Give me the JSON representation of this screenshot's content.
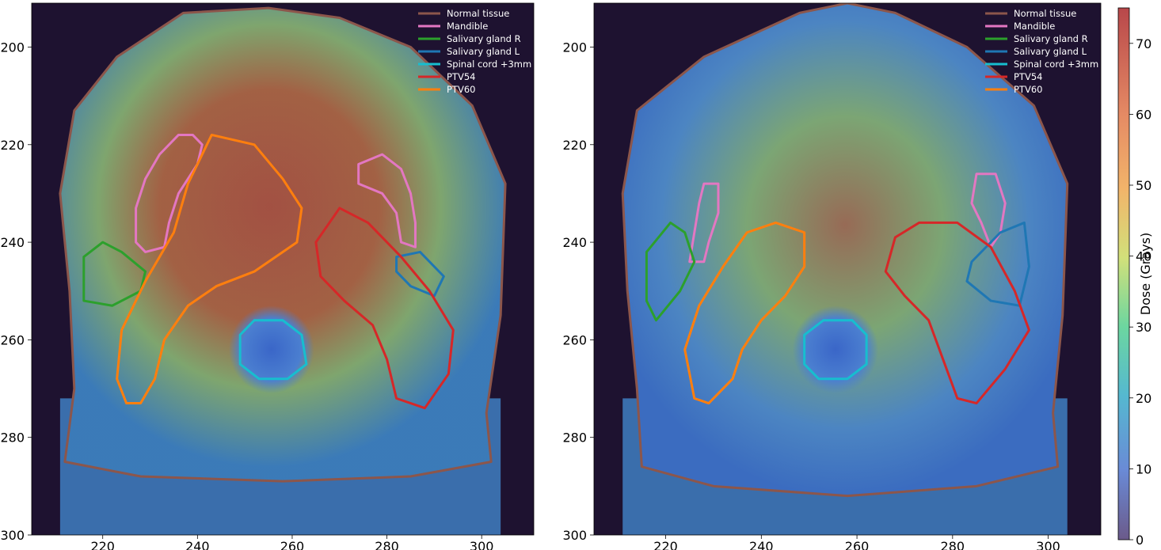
{
  "figure": {
    "colorbar": {
      "label": "Dose (Grays)",
      "ticks": [
        0,
        10,
        20,
        30,
        40,
        50,
        60,
        70
      ],
      "range": [
        0,
        75
      ]
    }
  },
  "chart_data": [
    {
      "type": "heatmap",
      "title": "",
      "xlabel": "",
      "ylabel": "",
      "xlim": [
        205,
        311
      ],
      "ylim": [
        300,
        191
      ],
      "xticks": [
        220,
        240,
        260,
        280,
        300
      ],
      "yticks": [
        200,
        220,
        240,
        260,
        280,
        300
      ],
      "legend": {
        "position": "top-right",
        "entries": [
          {
            "name": "Normal tissue",
            "color": "#8c564b"
          },
          {
            "name": "Mandible",
            "color": "#e377c2"
          },
          {
            "name": "Salivary gland R",
            "color": "#2ca02c"
          },
          {
            "name": "Salivary gland L",
            "color": "#1f77b4"
          },
          {
            "name": "Spinal cord +3mm",
            "color": "#17becf"
          },
          {
            "name": "PTV54",
            "color": "#d62728"
          },
          {
            "name": "PTV60",
            "color": "#ff7f0e"
          }
        ]
      },
      "contours": {
        "Normal tissue": [
          [
            237,
            193
          ],
          [
            255,
            192
          ],
          [
            270,
            194
          ],
          [
            285,
            200
          ],
          [
            298,
            212
          ],
          [
            305,
            228
          ],
          [
            304,
            255
          ],
          [
            301,
            275
          ],
          [
            302,
            285
          ],
          [
            285,
            288
          ],
          [
            258,
            289
          ],
          [
            228,
            288
          ],
          [
            212,
            285
          ],
          [
            214,
            270
          ],
          [
            213,
            250
          ],
          [
            211,
            230
          ],
          [
            214,
            213
          ],
          [
            223,
            202
          ]
        ],
        "Mandible": [
          [
            236,
            218
          ],
          [
            239,
            218
          ],
          [
            241,
            220
          ],
          [
            240,
            224
          ],
          [
            236,
            230
          ],
          [
            234,
            236
          ],
          [
            233,
            241
          ],
          [
            229,
            242
          ],
          [
            227,
            240
          ],
          [
            227,
            233
          ],
          [
            229,
            227
          ],
          [
            232,
            222
          ]
        ],
        "Mandible2": [
          [
            274,
            224
          ],
          [
            279,
            222
          ],
          [
            283,
            225
          ],
          [
            285,
            230
          ],
          [
            286,
            236
          ],
          [
            286,
            241
          ],
          [
            283,
            240
          ],
          [
            282,
            234
          ],
          [
            279,
            230
          ],
          [
            274,
            228
          ]
        ],
        "Salivary gland R": [
          [
            216,
            243
          ],
          [
            220,
            240
          ],
          [
            224,
            242
          ],
          [
            229,
            246
          ],
          [
            228,
            250
          ],
          [
            222,
            253
          ],
          [
            216,
            252
          ]
        ],
        "Salivary gland L": [
          [
            282,
            243
          ],
          [
            287,
            242
          ],
          [
            292,
            247
          ],
          [
            290,
            251
          ],
          [
            285,
            249
          ],
          [
            282,
            246
          ]
        ],
        "Spinal cord +3mm": [
          [
            252,
            256
          ],
          [
            258,
            256
          ],
          [
            262,
            259
          ],
          [
            263,
            265
          ],
          [
            259,
            268
          ],
          [
            253,
            268
          ],
          [
            249,
            265
          ],
          [
            249,
            259
          ]
        ],
        "PTV54": [
          [
            270,
            233
          ],
          [
            276,
            236
          ],
          [
            283,
            243
          ],
          [
            289,
            250
          ],
          [
            294,
            258
          ],
          [
            293,
            267
          ],
          [
            288,
            274
          ],
          [
            282,
            272
          ],
          [
            280,
            264
          ],
          [
            277,
            257
          ],
          [
            271,
            252
          ],
          [
            266,
            247
          ],
          [
            265,
            240
          ]
        ],
        "PTV60": [
          [
            243,
            218
          ],
          [
            252,
            220
          ],
          [
            258,
            227
          ],
          [
            262,
            233
          ],
          [
            261,
            240
          ],
          [
            252,
            246
          ],
          [
            244,
            249
          ],
          [
            238,
            253
          ],
          [
            233,
            260
          ],
          [
            231,
            268
          ],
          [
            228,
            273
          ],
          [
            225,
            273
          ],
          [
            223,
            268
          ],
          [
            224,
            258
          ],
          [
            229,
            248
          ],
          [
            235,
            238
          ],
          [
            238,
            228
          ]
        ]
      }
    },
    {
      "type": "heatmap",
      "title": "",
      "xlabel": "",
      "ylabel": "",
      "xlim": [
        205,
        311
      ],
      "ylim": [
        300,
        191
      ],
      "xticks": [
        220,
        240,
        260,
        280,
        300
      ],
      "yticks": [
        200,
        220,
        240,
        260,
        280,
        300
      ],
      "legend": {
        "position": "top-right",
        "entries": [
          {
            "name": "Normal tissue",
            "color": "#8c564b"
          },
          {
            "name": "Mandible",
            "color": "#e377c2"
          },
          {
            "name": "Salivary gland R",
            "color": "#2ca02c"
          },
          {
            "name": "Salivary gland L",
            "color": "#1f77b4"
          },
          {
            "name": "Spinal cord +3mm",
            "color": "#17becf"
          },
          {
            "name": "PTV54",
            "color": "#d62728"
          },
          {
            "name": "PTV60",
            "color": "#ff7f0e"
          }
        ]
      },
      "contours": {
        "Normal tissue": [
          [
            248,
            193
          ],
          [
            258,
            191
          ],
          [
            268,
            193
          ],
          [
            283,
            200
          ],
          [
            297,
            212
          ],
          [
            304,
            228
          ],
          [
            303,
            255
          ],
          [
            301,
            275
          ],
          [
            302,
            286
          ],
          [
            285,
            290
          ],
          [
            258,
            292
          ],
          [
            230,
            290
          ],
          [
            215,
            286
          ],
          [
            214,
            270
          ],
          [
            212,
            250
          ],
          [
            211,
            230
          ],
          [
            214,
            213
          ],
          [
            228,
            202
          ]
        ],
        "Mandible": [
          [
            228,
            228
          ],
          [
            231,
            228
          ],
          [
            231,
            234
          ],
          [
            229,
            240
          ],
          [
            228,
            244
          ],
          [
            225,
            244
          ],
          [
            226,
            238
          ],
          [
            227,
            232
          ]
        ],
        "Mandible2": [
          [
            285,
            226
          ],
          [
            289,
            226
          ],
          [
            291,
            232
          ],
          [
            290,
            238
          ],
          [
            288,
            241
          ],
          [
            286,
            236
          ],
          [
            284,
            232
          ]
        ],
        "Salivary gland R": [
          [
            216,
            242
          ],
          [
            221,
            236
          ],
          [
            224,
            238
          ],
          [
            226,
            244
          ],
          [
            223,
            250
          ],
          [
            218,
            256
          ],
          [
            216,
            252
          ]
        ],
        "Salivary gland L": [
          [
            284,
            244
          ],
          [
            290,
            238
          ],
          [
            295,
            236
          ],
          [
            296,
            245
          ],
          [
            294,
            253
          ],
          [
            288,
            252
          ],
          [
            283,
            248
          ]
        ],
        "Spinal cord +3mm": [
          [
            253,
            256
          ],
          [
            259,
            256
          ],
          [
            262,
            259
          ],
          [
            262,
            265
          ],
          [
            258,
            268
          ],
          [
            252,
            268
          ],
          [
            249,
            265
          ],
          [
            249,
            259
          ]
        ],
        "PTV54": [
          [
            273,
            236
          ],
          [
            281,
            236
          ],
          [
            288,
            241
          ],
          [
            293,
            250
          ],
          [
            296,
            258
          ],
          [
            291,
            266
          ],
          [
            285,
            273
          ],
          [
            281,
            272
          ],
          [
            278,
            264
          ],
          [
            275,
            256
          ],
          [
            270,
            251
          ],
          [
            266,
            246
          ],
          [
            268,
            239
          ]
        ],
        "PTV60": [
          [
            237,
            238
          ],
          [
            243,
            236
          ],
          [
            249,
            238
          ],
          [
            249,
            245
          ],
          [
            245,
            251
          ],
          [
            240,
            256
          ],
          [
            236,
            262
          ],
          [
            234,
            268
          ],
          [
            229,
            273
          ],
          [
            226,
            272
          ],
          [
            224,
            262
          ],
          [
            227,
            253
          ],
          [
            232,
            245
          ]
        ]
      }
    }
  ]
}
